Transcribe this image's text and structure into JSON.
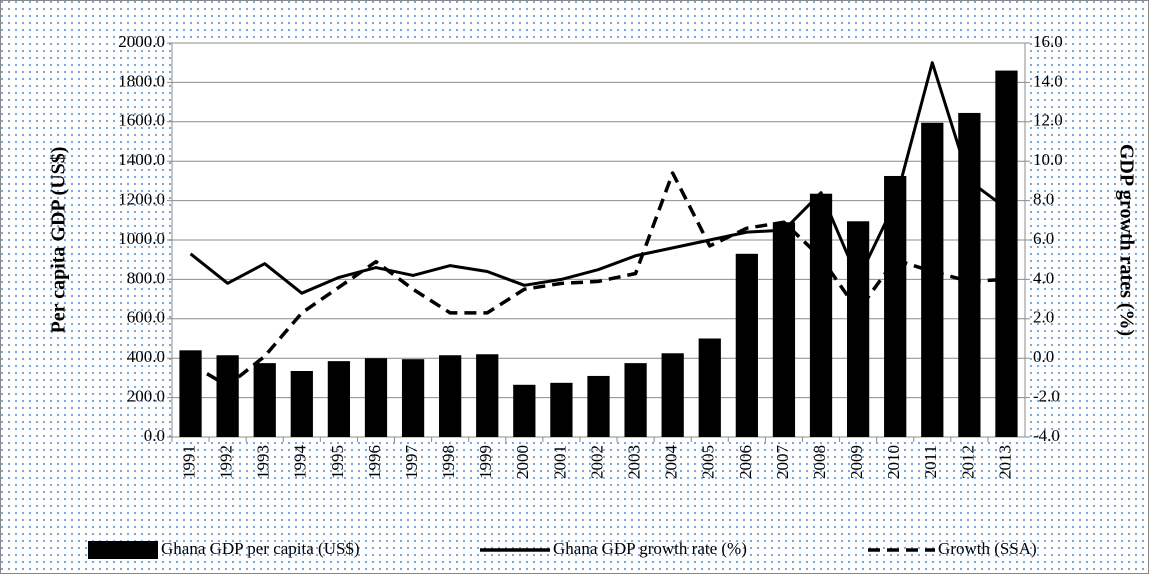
{
  "chart_data": {
    "type": "bar",
    "categories": [
      "1991",
      "1992",
      "1993",
      "1994",
      "1995",
      "1996",
      "1997",
      "1998",
      "1999",
      "2000",
      "2001",
      "2002",
      "2003",
      "2004",
      "2005",
      "2006",
      "2007",
      "2008",
      "2009",
      "2010",
      "2011",
      "2012",
      "2013"
    ],
    "series": [
      {
        "name": "Ghana GDP per capita (US$)",
        "type": "bar",
        "color": "#000000",
        "values": [
          440,
          415,
          375,
          335,
          385,
          400,
          395,
          415,
          420,
          265,
          275,
          310,
          375,
          425,
          500,
          930,
          1090,
          1235,
          1095,
          1325,
          1595,
          1645,
          1860
        ]
      },
      {
        "name": "Ghana GDP growth rate (%)",
        "type": "line",
        "axis": "y2",
        "style": "solid",
        "color": "#000000",
        "values": [
          5.3,
          3.8,
          4.8,
          3.3,
          4.1,
          4.6,
          4.2,
          4.7,
          4.4,
          3.7,
          4.0,
          4.5,
          5.2,
          5.6,
          6.0,
          6.4,
          6.5,
          8.4,
          4.0,
          7.9,
          15.0,
          9.0,
          7.6
        ]
      },
      {
        "name": "Growth (SSA)",
        "type": "line",
        "axis": "y2",
        "style": "dashed",
        "color": "#000000",
        "values": [
          -0.3,
          -1.4,
          0.1,
          2.3,
          3.6,
          4.9,
          3.5,
          2.3,
          2.3,
          3.5,
          3.8,
          3.9,
          4.3,
          9.4,
          5.7,
          6.6,
          6.9,
          5.1,
          2.4,
          5.0,
          4.4,
          3.9,
          4.0
        ]
      }
    ],
    "y_label": "Per capita GDP (US$)",
    "y2_label": "GDP growth rates (%)",
    "ylim": [
      0,
      2000
    ],
    "yticks": [
      {
        "value": 0,
        "label": "0.0"
      },
      {
        "value": 200,
        "label": "200.0"
      },
      {
        "value": 400,
        "label": "400.0"
      },
      {
        "value": 600,
        "label": "600.0"
      },
      {
        "value": 800,
        "label": "800.0"
      },
      {
        "value": 1000,
        "label": "1000.0"
      },
      {
        "value": 1200,
        "label": "1200.0"
      },
      {
        "value": 1400,
        "label": "1400.0"
      },
      {
        "value": 1600,
        "label": "1600.0"
      },
      {
        "value": 1800,
        "label": "1800.0"
      },
      {
        "value": 2000,
        "label": "2000.0"
      }
    ],
    "y2lim": [
      -4,
      16
    ],
    "y2ticks": [
      {
        "value": -4,
        "label": "-4.0"
      },
      {
        "value": -2,
        "label": "-2.0"
      },
      {
        "value": 0,
        "label": "0.0"
      },
      {
        "value": 2,
        "label": "2.0"
      },
      {
        "value": 4,
        "label": "4.0"
      },
      {
        "value": 6,
        "label": "6.0"
      },
      {
        "value": 8,
        "label": "8.0"
      },
      {
        "value": 10,
        "label": "10.0"
      },
      {
        "value": 12,
        "label": "12.0"
      },
      {
        "value": 14,
        "label": "14.0"
      },
      {
        "value": 16,
        "label": "16.0"
      }
    ],
    "grid": true,
    "legend": "bottom"
  }
}
